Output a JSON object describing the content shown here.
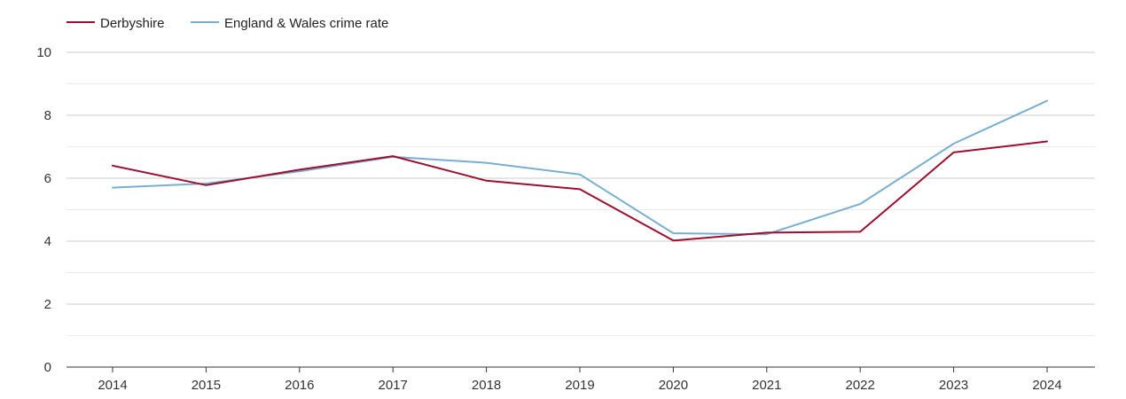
{
  "chart_data": {
    "type": "line",
    "title": "",
    "xlabel": "",
    "ylabel": "",
    "categories": [
      "2014",
      "2015",
      "2016",
      "2017",
      "2018",
      "2019",
      "2020",
      "2021",
      "2022",
      "2023",
      "2024"
    ],
    "ylim": [
      0,
      10
    ],
    "yticks": [
      0,
      2,
      4,
      6,
      8,
      10
    ],
    "grid": true,
    "legend_position": "top-left",
    "series": [
      {
        "name": "Derbyshire",
        "color": "#9b0f30",
        "values": [
          6.4,
          5.78,
          6.27,
          6.7,
          5.92,
          5.65,
          4.02,
          4.27,
          4.3,
          6.82,
          7.17
        ]
      },
      {
        "name": "England & Wales crime rate",
        "color": "#7aaed0",
        "values": [
          5.7,
          5.83,
          6.22,
          6.68,
          6.49,
          6.12,
          4.25,
          4.22,
          5.18,
          7.1,
          8.46
        ]
      }
    ]
  }
}
